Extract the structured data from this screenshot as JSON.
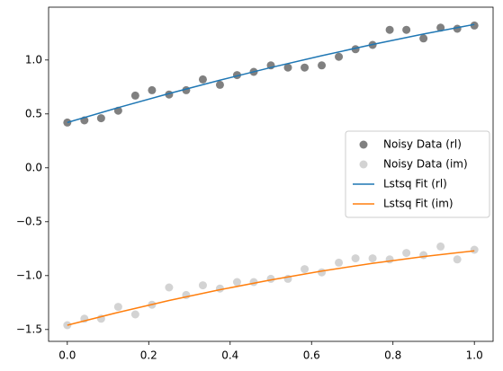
{
  "chart_data": {
    "type": "scatter",
    "xlim": [
      -0.046,
      1.046
    ],
    "ylim": [
      -1.61,
      1.49
    ],
    "xticks": [
      {
        "value": 0,
        "label": "0.0"
      },
      0.2,
      0.4,
      0.6,
      0.8,
      {
        "value": 1,
        "label": "1.0"
      }
    ],
    "yticks": [
      {
        "value": -1.5,
        "label": "−1.5"
      },
      {
        "value": -1,
        "label": "−1.0"
      },
      {
        "value": -0.5,
        "label": "−0.5"
      },
      {
        "value": 0,
        "label": "0.0"
      },
      0.5,
      {
        "value": 1,
        "label": "1.0"
      }
    ],
    "grid": false,
    "legend": "center right",
    "series": [
      {
        "name": "Noisy Data (rl)",
        "type": "scatter",
        "color": "#808080",
        "x": [
          0,
          0.042,
          0.083,
          0.125,
          0.167,
          0.208,
          0.25,
          0.292,
          0.333,
          0.375,
          0.417,
          0.458,
          0.5,
          0.542,
          0.583,
          0.625,
          0.667,
          0.708,
          0.75,
          0.792,
          0.833,
          0.875,
          0.917,
          0.958,
          1
        ],
        "values": [
          0.42,
          0.44,
          0.46,
          0.53,
          0.67,
          0.72,
          0.68,
          0.72,
          0.82,
          0.77,
          0.86,
          0.89,
          0.95,
          0.93,
          0.93,
          0.95,
          1.03,
          1.1,
          1.14,
          1.28,
          1.28,
          1.2,
          1.3,
          1.29,
          1.32
        ]
      },
      {
        "name": "Noisy Data (im)",
        "type": "scatter",
        "color": "#d3d3d3",
        "x": [
          0,
          0.042,
          0.083,
          0.125,
          0.167,
          0.208,
          0.25,
          0.292,
          0.333,
          0.375,
          0.417,
          0.458,
          0.5,
          0.542,
          0.583,
          0.625,
          0.667,
          0.708,
          0.75,
          0.792,
          0.833,
          0.875,
          0.917,
          0.958,
          1
        ],
        "values": [
          -1.46,
          -1.4,
          -1.4,
          -1.29,
          -1.36,
          -1.27,
          -1.11,
          -1.18,
          -1.09,
          -1.12,
          -1.06,
          -1.06,
          -1.03,
          -1.03,
          -0.94,
          -0.97,
          -0.88,
          -0.84,
          -0.84,
          -0.85,
          -0.79,
          -0.81,
          -0.73,
          -0.85,
          -0.76
        ]
      },
      {
        "name": "Lstsq Fit (rl)",
        "type": "line",
        "color": "#1f77b4",
        "x": [
          0,
          0.125,
          0.25,
          0.375,
          0.5,
          0.625,
          0.75,
          0.875,
          1
        ],
        "values": [
          0.42,
          0.558,
          0.689,
          0.813,
          0.93,
          1.04,
          1.144,
          1.241,
          1.33
        ]
      },
      {
        "name": "Lstsq Fit (im)",
        "type": "line",
        "color": "#ff7f0e",
        "x": [
          0,
          0.125,
          0.25,
          0.375,
          0.5,
          0.625,
          0.75,
          0.875,
          1
        ],
        "values": [
          -1.46,
          -1.341,
          -1.231,
          -1.131,
          -1.04,
          -0.958,
          -0.886,
          -0.824,
          -0.77
        ]
      }
    ]
  }
}
